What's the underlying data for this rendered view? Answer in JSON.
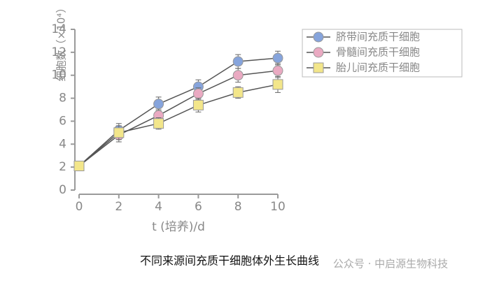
{
  "chart_data": {
    "type": "line",
    "caption": "不同来源间充质干细胞体外生长曲线",
    "watermark": "公众号 · 中启源生物科技",
    "xlabel": "t (培养)/d",
    "ylabel": "细胞数（×10⁴）",
    "x": [
      0,
      2,
      4,
      6,
      8,
      10
    ],
    "xlim": [
      0,
      10
    ],
    "xticks": [
      0,
      2,
      4,
      6,
      8,
      10
    ],
    "ylim": [
      0,
      14
    ],
    "yticks": [
      0,
      2,
      4,
      6,
      8,
      10,
      12,
      14
    ],
    "legend": "upper right",
    "series": [
      {
        "name": "脐带间充质干细胞",
        "color": "#86a4dc",
        "marker": "circle",
        "values": [
          2.1,
          5.2,
          7.5,
          9.0,
          11.2,
          11.5
        ],
        "errors": [
          0.4,
          0.6,
          0.6,
          0.6,
          0.6,
          0.6
        ]
      },
      {
        "name": "骨髓间充质干细胞",
        "color": "#eaaac2",
        "marker": "circle",
        "values": [
          2.1,
          4.8,
          6.5,
          8.4,
          10.0,
          10.4
        ],
        "errors": [
          0.4,
          0.6,
          0.5,
          0.5,
          0.6,
          0.6
        ]
      },
      {
        "name": "胎儿间充质干细胞",
        "color": "#f3e68a",
        "marker": "square",
        "values": [
          2.1,
          5.0,
          5.8,
          7.4,
          8.5,
          9.2
        ],
        "errors": [
          0.4,
          0.6,
          0.5,
          0.6,
          0.5,
          0.7
        ]
      }
    ]
  }
}
